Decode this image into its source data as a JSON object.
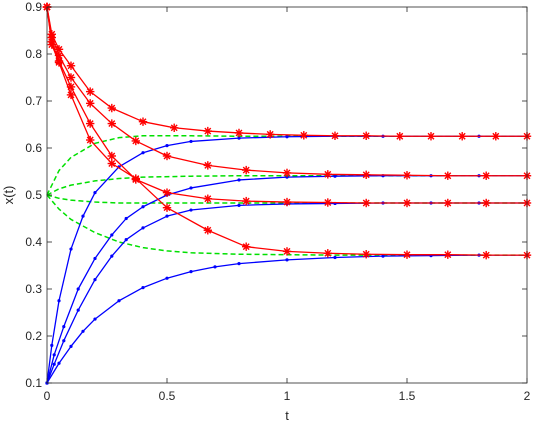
{
  "chart_data": {
    "type": "line",
    "title": "",
    "xlabel": "t",
    "ylabel": "x(t)",
    "xlim": [
      0,
      2
    ],
    "ylim": [
      0.1,
      0.9
    ],
    "xticks": [
      "0",
      "0.5",
      "1",
      "1.5",
      "2"
    ],
    "yticks": [
      "0.1",
      "0.2",
      "0.3",
      "0.4",
      "0.5",
      "0.6",
      "0.7",
      "0.8",
      "0.9"
    ],
    "grid": false,
    "legend": "none",
    "colors": {
      "red": "#ff0000",
      "blue": "#0000ff",
      "green": "#00e000",
      "axis": "#262626"
    },
    "series": [
      {
        "color": "red",
        "style": "solid",
        "marker": "asterisk",
        "x": [
          0,
          0.02,
          0.05,
          0.1,
          0.18,
          0.27,
          0.4,
          0.53,
          0.67,
          0.8,
          0.93,
          1.07,
          1.2,
          1.33,
          1.47,
          1.6,
          1.73,
          1.87,
          2.0
        ],
        "y": [
          0.9,
          0.842,
          0.81,
          0.775,
          0.72,
          0.685,
          0.656,
          0.643,
          0.636,
          0.632,
          0.629,
          0.627,
          0.626,
          0.626,
          0.625,
          0.625,
          0.625,
          0.625,
          0.625
        ]
      },
      {
        "color": "red",
        "style": "solid",
        "marker": "asterisk",
        "x": [
          0,
          0.02,
          0.05,
          0.1,
          0.18,
          0.27,
          0.37,
          0.5,
          0.67,
          0.83,
          1.0,
          1.17,
          1.33,
          1.5,
          1.67,
          1.83,
          2.0
        ],
        "y": [
          0.9,
          0.835,
          0.797,
          0.75,
          0.695,
          0.652,
          0.615,
          0.583,
          0.563,
          0.553,
          0.547,
          0.544,
          0.543,
          0.542,
          0.541,
          0.541,
          0.541
        ]
      },
      {
        "color": "red",
        "style": "solid",
        "marker": "asterisk",
        "x": [
          0,
          0.02,
          0.05,
          0.1,
          0.18,
          0.27,
          0.37,
          0.5,
          0.67,
          0.83,
          1.0,
          1.17,
          1.33,
          1.5,
          1.67,
          1.83,
          2.0
        ],
        "y": [
          0.9,
          0.826,
          0.785,
          0.73,
          0.652,
          0.583,
          0.533,
          0.505,
          0.492,
          0.487,
          0.485,
          0.484,
          0.483,
          0.483,
          0.483,
          0.483,
          0.483
        ]
      },
      {
        "color": "red",
        "style": "solid",
        "marker": "asterisk",
        "x": [
          0,
          0.02,
          0.05,
          0.1,
          0.18,
          0.27,
          0.37,
          0.5,
          0.67,
          0.83,
          1.0,
          1.17,
          1.33,
          1.5,
          1.67,
          1.83,
          2.0
        ],
        "y": [
          0.9,
          0.82,
          0.782,
          0.713,
          0.617,
          0.567,
          0.535,
          0.473,
          0.425,
          0.39,
          0.38,
          0.376,
          0.374,
          0.373,
          0.373,
          0.372,
          0.372
        ]
      },
      {
        "color": "green",
        "style": "dashed",
        "marker": "none",
        "x": [
          0,
          0.05,
          0.1,
          0.2,
          0.3,
          0.4,
          0.6,
          0.8,
          1.0,
          1.2,
          1.5,
          2.0
        ],
        "y": [
          0.5,
          0.552,
          0.58,
          0.61,
          0.622,
          0.626,
          0.626,
          0.625,
          0.625,
          0.625,
          0.625,
          0.625
        ]
      },
      {
        "color": "green",
        "style": "dashed",
        "marker": "none",
        "x": [
          0,
          0.05,
          0.1,
          0.2,
          0.3,
          0.4,
          0.6,
          0.8,
          1.0,
          1.2,
          1.5,
          2.0
        ],
        "y": [
          0.5,
          0.513,
          0.521,
          0.53,
          0.535,
          0.538,
          0.54,
          0.541,
          0.541,
          0.541,
          0.541,
          0.541
        ]
      },
      {
        "color": "green",
        "style": "dashed",
        "marker": "none",
        "x": [
          0,
          0.05,
          0.1,
          0.2,
          0.3,
          0.4,
          0.6,
          0.8,
          1.0,
          1.2,
          1.5,
          2.0
        ],
        "y": [
          0.5,
          0.493,
          0.489,
          0.485,
          0.483,
          0.483,
          0.483,
          0.483,
          0.483,
          0.483,
          0.483,
          0.483
        ]
      },
      {
        "color": "green",
        "style": "dashed",
        "marker": "none",
        "x": [
          0,
          0.05,
          0.1,
          0.2,
          0.3,
          0.4,
          0.5,
          0.6,
          0.8,
          1.0,
          1.2,
          1.5,
          2.0
        ],
        "y": [
          0.5,
          0.47,
          0.448,
          0.42,
          0.4,
          0.388,
          0.381,
          0.377,
          0.374,
          0.373,
          0.372,
          0.372,
          0.372
        ]
      },
      {
        "color": "blue",
        "style": "solid",
        "marker": "dot",
        "x": [
          0,
          0.02,
          0.05,
          0.1,
          0.15,
          0.2,
          0.3,
          0.4,
          0.5,
          0.6,
          0.8,
          1.0,
          1.2,
          1.4,
          1.6,
          1.8,
          2.0
        ],
        "y": [
          0.1,
          0.18,
          0.275,
          0.385,
          0.455,
          0.505,
          0.56,
          0.59,
          0.605,
          0.614,
          0.621,
          0.624,
          0.625,
          0.625,
          0.625,
          0.625,
          0.625
        ]
      },
      {
        "color": "blue",
        "style": "solid",
        "marker": "dot",
        "x": [
          0,
          0.03,
          0.07,
          0.13,
          0.2,
          0.27,
          0.33,
          0.4,
          0.5,
          0.6,
          0.8,
          1.0,
          1.2,
          1.4,
          1.6,
          1.8,
          2.0
        ],
        "y": [
          0.1,
          0.16,
          0.22,
          0.3,
          0.365,
          0.415,
          0.45,
          0.475,
          0.5,
          0.515,
          0.532,
          0.538,
          0.54,
          0.541,
          0.541,
          0.541,
          0.541
        ]
      },
      {
        "color": "blue",
        "style": "solid",
        "marker": "dot",
        "x": [
          0,
          0.03,
          0.07,
          0.13,
          0.2,
          0.27,
          0.33,
          0.4,
          0.5,
          0.6,
          0.8,
          1.0,
          1.2,
          1.4,
          1.6,
          1.8,
          2.0
        ],
        "y": [
          0.1,
          0.14,
          0.19,
          0.255,
          0.32,
          0.37,
          0.405,
          0.43,
          0.455,
          0.468,
          0.478,
          0.481,
          0.482,
          0.483,
          0.483,
          0.483,
          0.483
        ]
      },
      {
        "color": "blue",
        "style": "solid",
        "marker": "dot",
        "x": [
          0,
          0.05,
          0.1,
          0.15,
          0.2,
          0.3,
          0.4,
          0.5,
          0.6,
          0.7,
          0.8,
          1.0,
          1.2,
          1.4,
          1.6,
          1.8,
          2.0
        ],
        "y": [
          0.1,
          0.142,
          0.178,
          0.21,
          0.236,
          0.275,
          0.303,
          0.323,
          0.337,
          0.347,
          0.354,
          0.362,
          0.367,
          0.37,
          0.371,
          0.372,
          0.372
        ]
      }
    ]
  }
}
